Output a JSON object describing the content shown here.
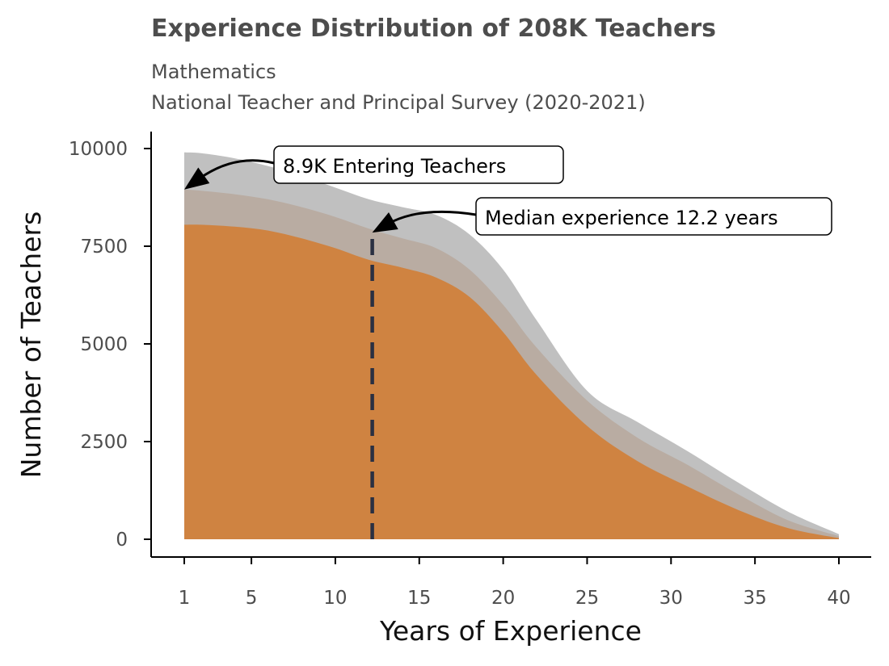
{
  "chart_data": {
    "type": "area",
    "title": "Experience Distribution of 208K Teachers",
    "subtitle_lines": [
      "Mathematics",
      "National Teacher and Principal Survey (2020-2021)"
    ],
    "xlabel": "Years of Experience",
    "ylabel": "Number of Teachers",
    "xlim": [
      1,
      40
    ],
    "ylim": [
      0,
      10000
    ],
    "x_ticks": [
      1,
      5,
      10,
      15,
      20,
      25,
      30,
      35,
      40
    ],
    "y_ticks": [
      0,
      2500,
      5000,
      7500,
      10000
    ],
    "grid": false,
    "legend": "none",
    "x": [
      1,
      2,
      4,
      6,
      8,
      10,
      12,
      14,
      16,
      18,
      20,
      22,
      25,
      28,
      31,
      34,
      37,
      40
    ],
    "series": [
      {
        "color": "#c0c0c0",
        "values": [
          9900,
          9880,
          9750,
          9550,
          9300,
          9000,
          8700,
          8500,
          8300,
          7800,
          6900,
          5600,
          3800,
          3000,
          2250,
          1450,
          700,
          130
        ]
      },
      {
        "color": "#b9aca2",
        "values": [
          8950,
          8920,
          8830,
          8700,
          8500,
          8250,
          7950,
          7700,
          7450,
          6900,
          6000,
          4900,
          3550,
          2600,
          1900,
          1150,
          480,
          80
        ]
      },
      {
        "color": "#cf8341",
        "values": [
          8050,
          8050,
          8000,
          7900,
          7700,
          7450,
          7150,
          6950,
          6700,
          6200,
          5300,
          4200,
          2900,
          2000,
          1350,
          750,
          280,
          30
        ]
      }
    ],
    "median_line": {
      "x": 12.2,
      "y_top": 7850,
      "color": "#2a3042"
    },
    "annotations": [
      {
        "text": "8.9K Entering Teachers",
        "x": 1,
        "y": 8950
      },
      {
        "text": "Median experience 12.2 years",
        "x": 12.2,
        "y": 7850
      }
    ]
  }
}
